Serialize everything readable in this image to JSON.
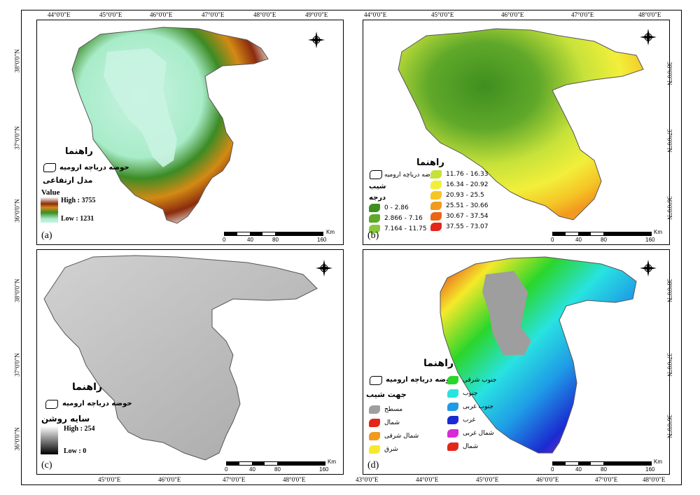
{
  "panels": {
    "a": {
      "label": "(a)",
      "x_ticks": [
        "44°0'0\"E",
        "45°0'0\"E",
        "46°0'0\"E",
        "47°0'0\"E",
        "48°0'0\"E",
        "49°0'0\"E"
      ],
      "y_ticks": [
        "38°0'0\"N",
        "37°0'0\"N",
        "36°0'0\"N"
      ],
      "legend": {
        "title": "راهنما",
        "basin": "حوضه دریاچه ارومیه",
        "layer": "مدل ارتفاعی",
        "value_title": "Value",
        "high": "High : 3755",
        "low": "Low : 1231"
      },
      "scale": [
        "0",
        "40",
        "80",
        "160",
        "Km"
      ],
      "colors": {
        "ramp_top": "#ffffff",
        "ramp_mid1": "#8b2b0e",
        "ramp_mid2": "#3a7a1a",
        "ramp_bottom": "#c7f5e6"
      }
    },
    "b": {
      "label": "(b)",
      "x_ticks": [
        "44°0'0\"E",
        "45°0'0\"E",
        "46°0'0\"E",
        "47°0'0\"E",
        "48°0'0\"E"
      ],
      "y_ticks": [
        "38°0'0\"N",
        "37°0'0\"N",
        "36°0'0\"N"
      ],
      "legend": {
        "title": "راهنما",
        "basin": "حوضه دریاچه ارومیه",
        "layer": "شیب",
        "unit": "درجه",
        "classes": [
          {
            "label": "0 - 2.86",
            "color": "#3f8f1f"
          },
          {
            "label": "2.866 - 7.16",
            "color": "#5fa82a"
          },
          {
            "label": "7.164 - 11.75",
            "color": "#8cc63f"
          },
          {
            "label": "11.76 - 16.33",
            "color": "#c7e23a"
          },
          {
            "label": "16.34 - 20.92",
            "color": "#f2ef3a"
          },
          {
            "label": "20.93 - 25.5",
            "color": "#f5c526"
          },
          {
            "label": "25.51 - 30.66",
            "color": "#f29a1f"
          },
          {
            "label": "30.67 - 37.54",
            "color": "#ec6416"
          },
          {
            "label": "37.55 - 73.07",
            "color": "#e3261a"
          }
        ]
      },
      "scale": [
        "0",
        "40",
        "80",
        "160",
        "Km"
      ]
    },
    "c": {
      "label": "(c)",
      "x_ticks": [
        "45°0'0\"E",
        "46°0'0\"E",
        "47°0'0\"E",
        "48°0'0\"E"
      ],
      "y_ticks": [
        "38°0'0\"N",
        "37°0'0\"N",
        "36°0'0\"N"
      ],
      "legend": {
        "title": "راهنما",
        "basin": "حوضه دریاچه ارومیه",
        "layer": "سایه روشن",
        "high": "High : 254",
        "low": "Low : 0"
      },
      "scale": [
        "0",
        "40",
        "80",
        "160",
        "Km"
      ]
    },
    "d": {
      "label": "(d)",
      "x_ticks": [
        "43°0'0\"E",
        "44°0'0\"E",
        "45°0'0\"E",
        "46°0'0\"E",
        "47°0'0\"E",
        "48°0'0\"E"
      ],
      "y_ticks": [
        "38°0'0\"N",
        "37°0'0\"N",
        "36°0'0\"N"
      ],
      "legend": {
        "title": "راهنما",
        "basin": "حوضه دریاچه ارومیه",
        "layer": "جهت شیب",
        "classes_left": [
          {
            "label": "مسطح",
            "color": "#9e9e9e"
          },
          {
            "label": "شمال",
            "color": "#e3261a"
          },
          {
            "label": "شمال شرقی",
            "color": "#f29a1f"
          },
          {
            "label": "شرق",
            "color": "#f5e92a"
          }
        ],
        "classes_right": [
          {
            "label": "جنوب شرقی",
            "color": "#2bd62b"
          },
          {
            "label": "جنوب",
            "color": "#28e3e0"
          },
          {
            "label": "جنوب غربی",
            "color": "#1f9be6"
          },
          {
            "label": "غرب",
            "color": "#1a2bd1"
          },
          {
            "label": "شمال غربی",
            "color": "#d62bd6"
          },
          {
            "label": "شمال",
            "color": "#e3261a"
          }
        ]
      },
      "scale": [
        "0",
        "40",
        "80",
        "160",
        "Km"
      ]
    }
  },
  "compass": {
    "n": "N",
    "s": "S",
    "e": "E",
    "w": "W"
  }
}
